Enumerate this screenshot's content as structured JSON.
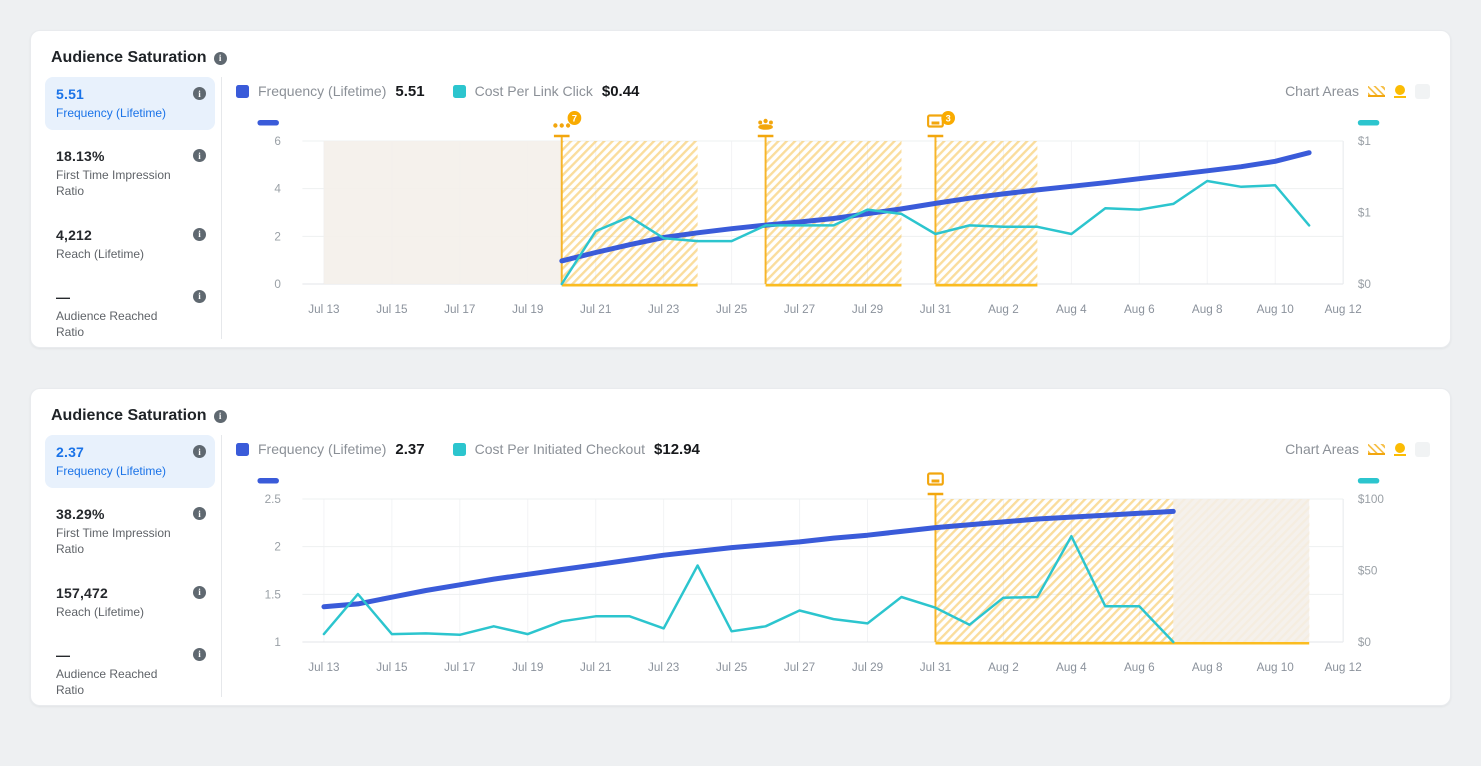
{
  "page": {
    "background": "#eef0f2"
  },
  "cards": [
    {
      "title": "Audience Saturation",
      "sidebar": [
        {
          "value": "5.51",
          "label": "Frequency (Lifetime)",
          "active": true
        },
        {
          "value": "18.13%",
          "label": "First Time Impression Ratio",
          "active": false
        },
        {
          "value": "4,212",
          "label": "Reach (Lifetime)",
          "active": false
        },
        {
          "value": "—",
          "label": "Audience Reached Ratio",
          "active": false
        }
      ],
      "legend": [
        {
          "label": "Frequency (Lifetime)",
          "value": "5.51",
          "color": "#3a5bd9"
        },
        {
          "label": "Cost Per Link Click",
          "value": "$0.44",
          "color": "#2cc5ce"
        }
      ],
      "chart_areas_label": "Chart Areas",
      "chart_areas_icons": [
        "hatched-area-icon",
        "dot-area-icon",
        "blank-area-icon"
      ],
      "chart_data": {
        "type": "line",
        "x_tick_labels": [
          "Jul 13",
          "Jul 15",
          "Jul 17",
          "Jul 19",
          "Jul 21",
          "Jul 23",
          "Jul 25",
          "Jul 27",
          "Jul 29",
          "Jul 31",
          "Aug 2",
          "Aug 4",
          "Aug 6",
          "Aug 8",
          "Aug 10",
          "Aug 12"
        ],
        "x_range_days": 30,
        "grid": true,
        "left_axis": {
          "min": 0,
          "max": 6,
          "tick_values": [
            6,
            4,
            2,
            0
          ],
          "tick_labels": [
            "6",
            "4",
            "2",
            "0"
          ]
        },
        "right_axis": {
          "min": 0,
          "max": 1,
          "tick_values": [
            1,
            0.5,
            0
          ],
          "tick_labels": [
            "$1",
            "$1",
            "$0"
          ]
        },
        "series": [
          {
            "name": "Frequency (Lifetime)",
            "axis": "left",
            "color": "#3a5bd9",
            "width": 5,
            "start_day": 7,
            "values": [
              0.97,
              1.32,
              1.65,
              1.95,
              2.15,
              2.32,
              2.47,
              2.6,
              2.75,
              2.95,
              3.15,
              3.38,
              3.6,
              3.78,
              3.95,
              4.1,
              4.25,
              4.42,
              4.58,
              4.75,
              4.92,
              5.15,
              5.51
            ]
          },
          {
            "name": "Cost Per Link Click",
            "axis": "right",
            "color": "#2cc5ce",
            "width": 2.5,
            "start_day": 7,
            "values": [
              0,
              0.37,
              0.47,
              0.32,
              0.3,
              0.3,
              0.41,
              0.41,
              0.41,
              0.52,
              0.49,
              0.35,
              0.41,
              0.4,
              0.4,
              0.35,
              0.53,
              0.52,
              0.56,
              0.72,
              0.68,
              0.69,
              0.41
            ]
          }
        ],
        "regions": [
          {
            "kind": "plain",
            "from_day": 0,
            "to_day": 7,
            "icon": "",
            "badge": ""
          },
          {
            "kind": "hatched",
            "from_day": 7,
            "to_day": 11,
            "icon": "more-dots-icon",
            "badge": "7"
          },
          {
            "kind": "hatched",
            "from_day": 13,
            "to_day": 17,
            "icon": "audience-icon",
            "badge": ""
          },
          {
            "kind": "hatched",
            "from_day": 18,
            "to_day": 21,
            "icon": "desktop-icon",
            "badge": "3"
          }
        ]
      }
    },
    {
      "title": "Audience Saturation",
      "sidebar": [
        {
          "value": "2.37",
          "label": "Frequency (Lifetime)",
          "active": true
        },
        {
          "value": "38.29%",
          "label": "First Time Impression Ratio",
          "active": false
        },
        {
          "value": "157,472",
          "label": "Reach (Lifetime)",
          "active": false
        },
        {
          "value": "—",
          "label": "Audience Reached Ratio",
          "active": false
        }
      ],
      "legend": [
        {
          "label": "Frequency (Lifetime)",
          "value": "2.37",
          "color": "#3a5bd9"
        },
        {
          "label": "Cost Per Initiated Checkout",
          "value": "$12.94",
          "color": "#2cc5ce"
        }
      ],
      "chart_areas_label": "Chart Areas",
      "chart_areas_icons": [
        "hatched-area-icon",
        "dot-area-icon",
        "blank-area-icon"
      ],
      "chart_data": {
        "type": "line",
        "x_tick_labels": [
          "Jul 13",
          "Jul 15",
          "Jul 17",
          "Jul 19",
          "Jul 21",
          "Jul 23",
          "Jul 25",
          "Jul 27",
          "Jul 29",
          "Jul 31",
          "Aug 2",
          "Aug 4",
          "Aug 6",
          "Aug 8",
          "Aug 10",
          "Aug 12"
        ],
        "x_range_days": 30,
        "grid": true,
        "left_axis": {
          "min": 1,
          "max": 2.5,
          "tick_values": [
            2.5,
            2,
            1.5,
            1
          ],
          "tick_labels": [
            "2.5",
            "2",
            "1.5",
            "1"
          ]
        },
        "right_axis": {
          "min": 0,
          "max": 100,
          "tick_values": [
            100,
            50,
            0
          ],
          "tick_labels": [
            "$100",
            "$50",
            "$0"
          ]
        },
        "series": [
          {
            "name": "Frequency (Lifetime)",
            "axis": "left",
            "color": "#3a5bd9",
            "width": 5,
            "start_day": 0,
            "values": [
              1.37,
              1.4,
              1.47,
              1.54,
              1.6,
              1.66,
              1.71,
              1.76,
              1.81,
              1.86,
              1.91,
              1.95,
              1.99,
              2.02,
              2.05,
              2.09,
              2.12,
              2.16,
              2.2,
              2.23,
              2.26,
              2.29,
              2.31,
              2.33,
              2.35,
              2.37
            ]
          },
          {
            "name": "Cost Per Initiated Checkout",
            "axis": "right",
            "color": "#2cc5ce",
            "width": 2.5,
            "start_day": 0,
            "values": [
              5.5,
              33.5,
              5.5,
              6,
              5,
              11,
              5.5,
              14.5,
              18,
              18,
              9.5,
              53.5,
              7.5,
              11,
              22,
              16,
              13,
              31.5,
              24,
              12,
              31,
              31.5,
              74,
              25,
              25,
              0
            ]
          }
        ],
        "regions": [
          {
            "kind": "hatched",
            "from_day": 18,
            "to_day": 29,
            "icon": "desktop-icon",
            "badge": ""
          },
          {
            "kind": "plain",
            "from_day": 25,
            "to_day": 29,
            "icon": "",
            "badge": ""
          }
        ]
      }
    }
  ]
}
